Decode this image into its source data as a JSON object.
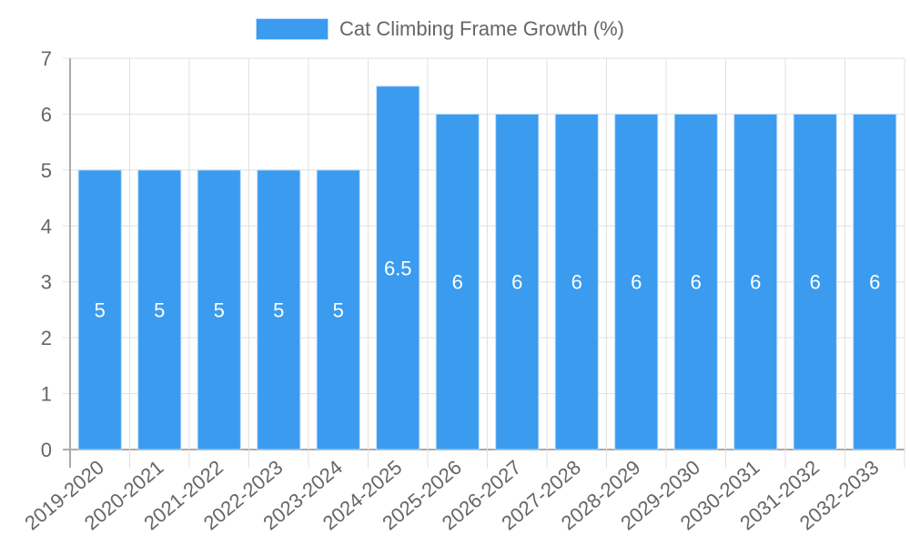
{
  "legend": {
    "label": "Cat Climbing Frame Growth (%)",
    "color": "#3a9bef"
  },
  "chart_data": {
    "type": "bar",
    "title": "",
    "xlabel": "",
    "ylabel": "",
    "ylim": [
      0,
      7
    ],
    "yticks": [
      0,
      1,
      2,
      3,
      4,
      5,
      6,
      7
    ],
    "grid": true,
    "legend_position": "top",
    "categories": [
      "2019-2020",
      "2020-2021",
      "2021-2022",
      "2022-2023",
      "2023-2024",
      "2024-2025",
      "2025-2026",
      "2026-2027",
      "2027-2028",
      "2028-2029",
      "2029-2030",
      "2030-2031",
      "2031-2032",
      "2032-2033"
    ],
    "series": [
      {
        "name": "Cat Climbing Frame Growth (%)",
        "color": "#3a9bef",
        "values": [
          5,
          5,
          5,
          5,
          5,
          6.5,
          6,
          6,
          6,
          6,
          6,
          6,
          6,
          6
        ]
      }
    ],
    "data_labels": true
  }
}
